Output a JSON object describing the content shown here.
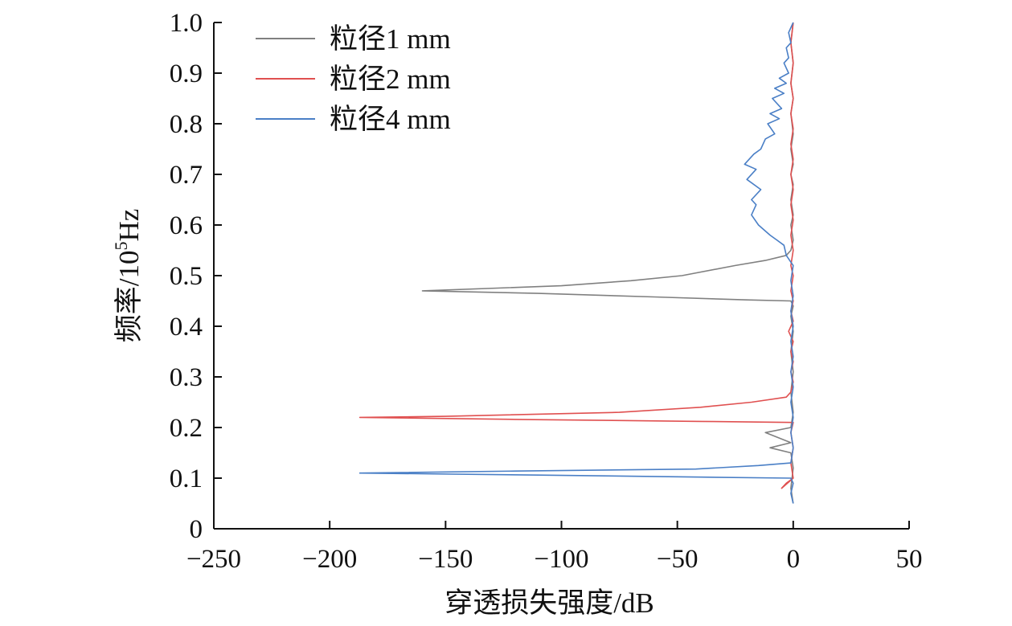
{
  "chart_data": {
    "type": "line",
    "orientation": "x-value-y-frequency",
    "xlabel": "穿透损失强度/dB",
    "ylabel": "频率/10",
    "ylabel_sup": "5",
    "ylabel_suffix": "Hz",
    "xlim": [
      -250,
      50
    ],
    "ylim": [
      0,
      1.0
    ],
    "xticks": [
      -250,
      -200,
      -150,
      -100,
      -50,
      0,
      50
    ],
    "xtick_labels": [
      "−250",
      "−200",
      "−150",
      "−100",
      "−50",
      "0",
      "50"
    ],
    "yticks": [
      0,
      0.1,
      0.2,
      0.3,
      0.4,
      0.5,
      0.6,
      0.7,
      0.8,
      0.9,
      1.0
    ],
    "ytick_labels": [
      "0",
      "0.1",
      "0.2",
      "0.3",
      "0.4",
      "0.5",
      "0.6",
      "0.7",
      "0.8",
      "0.9",
      "1.0"
    ],
    "grid": false,
    "legend_position": "top-left",
    "series": [
      {
        "name": "粒径1 mm",
        "color": "#808080",
        "points": [
          [
            0,
            0.05
          ],
          [
            -1,
            0.08
          ],
          [
            0,
            0.12
          ],
          [
            -1,
            0.15
          ],
          [
            -10,
            0.16
          ],
          [
            -1,
            0.17
          ],
          [
            -12,
            0.19
          ],
          [
            -1,
            0.2
          ],
          [
            0,
            0.23
          ],
          [
            -1,
            0.27
          ],
          [
            0,
            0.31
          ],
          [
            -1,
            0.35
          ],
          [
            0,
            0.39
          ],
          [
            -1,
            0.42
          ],
          [
            0,
            0.44
          ],
          [
            -1,
            0.45
          ],
          [
            -20,
            0.452
          ],
          [
            -60,
            0.458
          ],
          [
            -110,
            0.465
          ],
          [
            -160,
            0.47
          ],
          [
            -100,
            0.48
          ],
          [
            -70,
            0.49
          ],
          [
            -48,
            0.5
          ],
          [
            -25,
            0.52
          ],
          [
            -12,
            0.53
          ],
          [
            -3,
            0.54
          ],
          [
            -1,
            0.55
          ],
          [
            0,
            0.57
          ],
          [
            -1,
            0.6
          ],
          [
            0,
            0.62
          ],
          [
            -1,
            0.65
          ],
          [
            0,
            0.68
          ],
          [
            -1,
            0.7
          ],
          [
            0,
            0.72
          ],
          [
            -1,
            0.75
          ],
          [
            0,
            0.78
          ],
          [
            -1,
            0.82
          ],
          [
            0,
            0.85
          ],
          [
            -1,
            0.88
          ],
          [
            0,
            0.92
          ],
          [
            -1,
            0.96
          ],
          [
            0,
            1.0
          ]
        ]
      },
      {
        "name": "粒径2 mm",
        "color": "#e05050",
        "points": [
          [
            0,
            0.1
          ],
          [
            -5,
            0.08
          ],
          [
            -3,
            0.09
          ],
          [
            0,
            0.1
          ],
          [
            -1,
            0.13
          ],
          [
            0,
            0.16
          ],
          [
            -1,
            0.19
          ],
          [
            0,
            0.21
          ],
          [
            -40,
            0.212
          ],
          [
            -120,
            0.216
          ],
          [
            -187,
            0.22
          ],
          [
            -150,
            0.222
          ],
          [
            -75,
            0.23
          ],
          [
            -40,
            0.24
          ],
          [
            -18,
            0.25
          ],
          [
            -3,
            0.26
          ],
          [
            -1,
            0.27
          ],
          [
            0,
            0.29
          ],
          [
            -1,
            0.31
          ],
          [
            0,
            0.33
          ],
          [
            -1,
            0.35
          ],
          [
            0,
            0.37
          ],
          [
            -2,
            0.39
          ],
          [
            0,
            0.41
          ],
          [
            -1,
            0.43
          ],
          [
            0,
            0.45
          ],
          [
            -1,
            0.47
          ],
          [
            0,
            0.5
          ],
          [
            -1,
            0.52
          ],
          [
            0,
            0.55
          ],
          [
            -1,
            0.58
          ],
          [
            0,
            0.61
          ],
          [
            -1,
            0.64
          ],
          [
            0,
            0.67
          ],
          [
            -1,
            0.7
          ],
          [
            0,
            0.73
          ],
          [
            -1,
            0.76
          ],
          [
            0,
            0.79
          ],
          [
            -1,
            0.82
          ],
          [
            0,
            0.85
          ],
          [
            -1,
            0.88
          ],
          [
            0,
            0.92
          ],
          [
            -1,
            0.96
          ],
          [
            0,
            1.0
          ]
        ]
      },
      {
        "name": "粒径4 mm",
        "color": "#4a7fc6",
        "points": [
          [
            0,
            0.05
          ],
          [
            -1,
            0.07
          ],
          [
            0,
            0.09
          ],
          [
            -1,
            0.1
          ],
          [
            -40,
            0.102
          ],
          [
            -110,
            0.106
          ],
          [
            -187,
            0.11
          ],
          [
            -120,
            0.114
          ],
          [
            -42,
            0.118
          ],
          [
            -15,
            0.125
          ],
          [
            -1,
            0.13
          ],
          [
            0,
            0.16
          ],
          [
            -1,
            0.19
          ],
          [
            0,
            0.22
          ],
          [
            -1,
            0.25
          ],
          [
            0,
            0.28
          ],
          [
            -1,
            0.31
          ],
          [
            0,
            0.34
          ],
          [
            -1,
            0.37
          ],
          [
            0,
            0.4
          ],
          [
            -1,
            0.43
          ],
          [
            0,
            0.46
          ],
          [
            -1,
            0.49
          ],
          [
            0,
            0.52
          ],
          [
            -3,
            0.54
          ],
          [
            -4,
            0.56
          ],
          [
            -7,
            0.57
          ],
          [
            -10,
            0.58
          ],
          [
            -15,
            0.6
          ],
          [
            -18,
            0.62
          ],
          [
            -16,
            0.64
          ],
          [
            -18,
            0.65
          ],
          [
            -14,
            0.67
          ],
          [
            -20,
            0.69
          ],
          [
            -16,
            0.71
          ],
          [
            -21,
            0.72
          ],
          [
            -17,
            0.74
          ],
          [
            -14,
            0.75
          ],
          [
            -12,
            0.77
          ],
          [
            -8,
            0.78
          ],
          [
            -11,
            0.8
          ],
          [
            -6,
            0.81
          ],
          [
            -10,
            0.82
          ],
          [
            -5,
            0.83
          ],
          [
            -9,
            0.85
          ],
          [
            -4,
            0.86
          ],
          [
            -8,
            0.87
          ],
          [
            -3,
            0.88
          ],
          [
            -6,
            0.89
          ],
          [
            -2,
            0.9
          ],
          [
            -4,
            0.92
          ],
          [
            -2,
            0.93
          ],
          [
            -3,
            0.95
          ],
          [
            -1,
            0.96
          ],
          [
            -2,
            0.98
          ],
          [
            0,
            1.0
          ]
        ]
      }
    ]
  }
}
